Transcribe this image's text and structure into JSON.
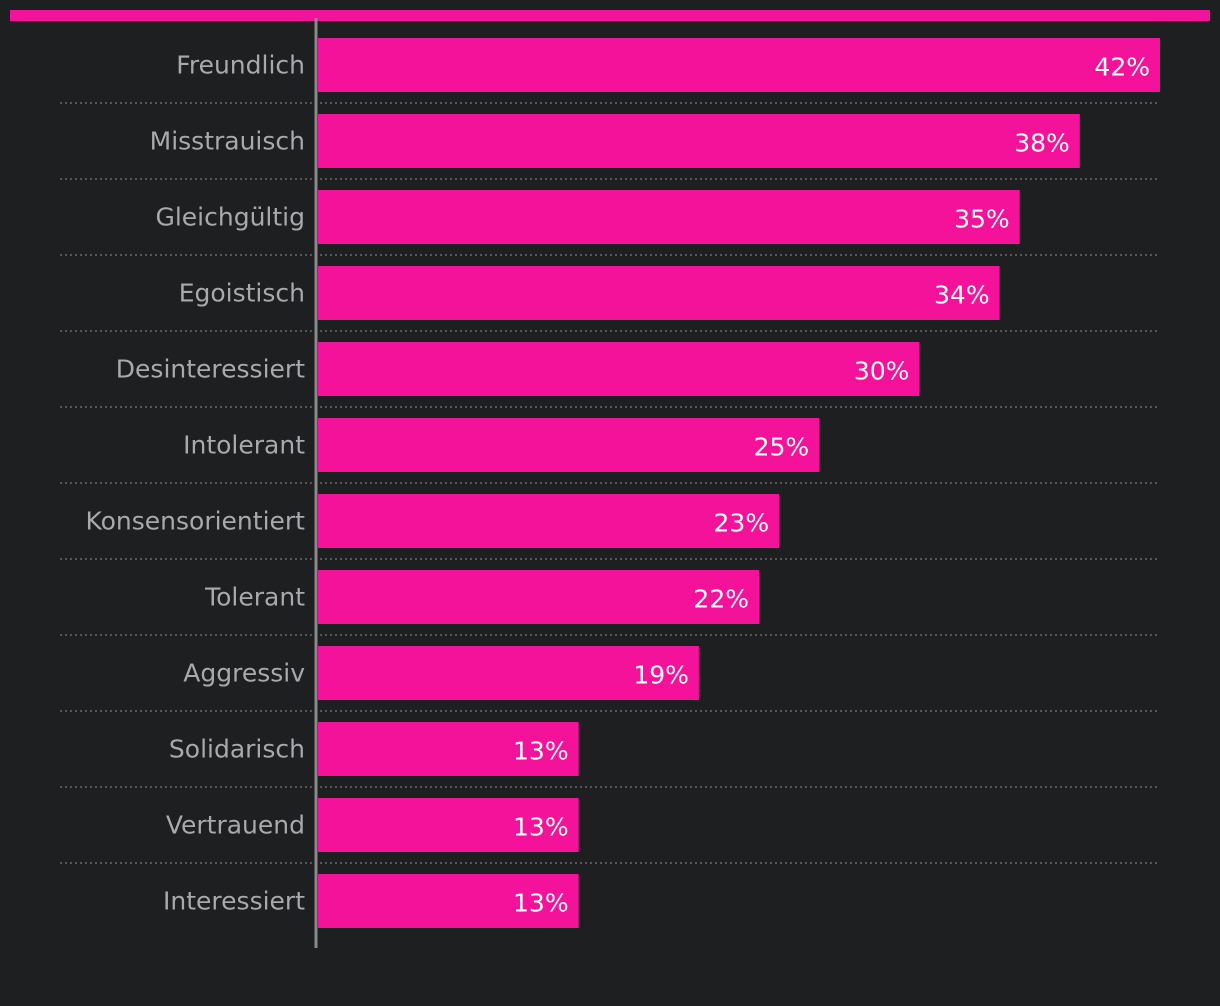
{
  "chart_data": {
    "type": "bar",
    "orientation": "horizontal",
    "categories": [
      "Freundlich",
      "Misstrauisch",
      "Gleichgültig",
      "Egoistisch",
      "Desinteressiert",
      "Intolerant",
      "Konsensorientiert",
      "Tolerant",
      "Aggressiv",
      "Solidarisch",
      "Vertrauend",
      "Interessiert"
    ],
    "values": [
      42,
      38,
      35,
      34,
      30,
      25,
      23,
      22,
      19,
      13,
      13,
      13
    ],
    "value_labels": [
      "42%",
      "38%",
      "35%",
      "34%",
      "30%",
      "25%",
      "23%",
      "22%",
      "19%",
      "13%",
      "13%",
      "13%"
    ],
    "title": "",
    "xlabel": "",
    "ylabel": "",
    "xlim": [
      0,
      42
    ],
    "grid": "dotted separators between categories",
    "legend": "none"
  },
  "colors": {
    "background": "#1e1f21",
    "bar": "#f5129a",
    "accent_rule": "#f5129a",
    "axis": "#8a8a8a",
    "separator": "#6a6a6a",
    "category_text": "#a9a9a9",
    "value_text": "#ffffff"
  }
}
